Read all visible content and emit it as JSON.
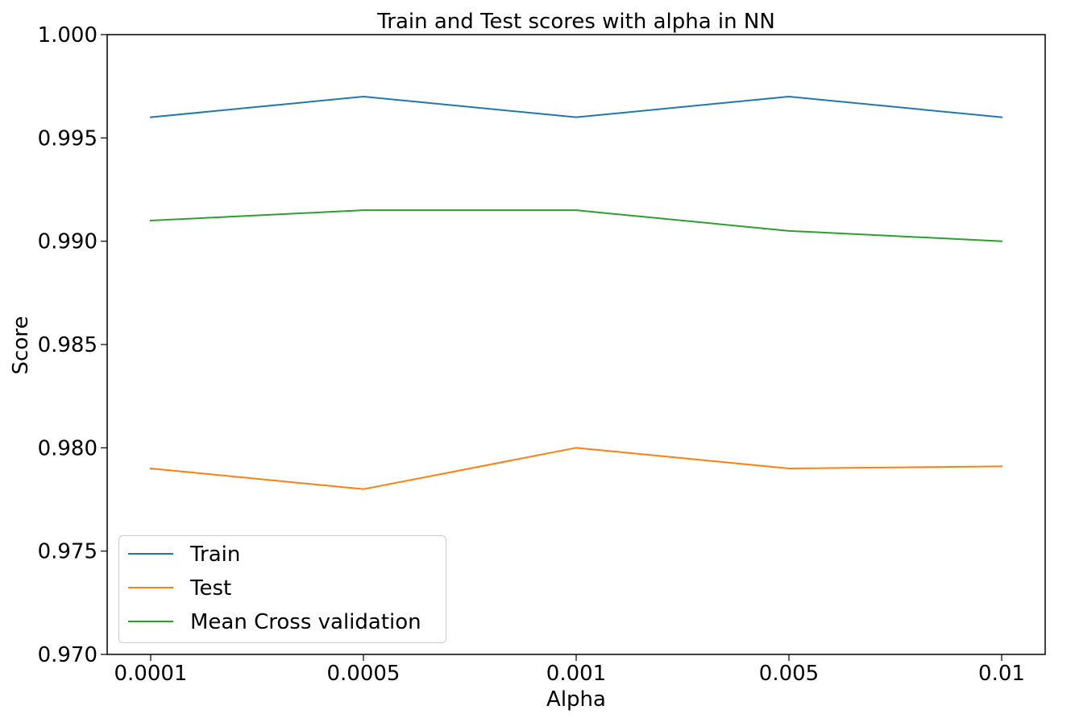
{
  "chart_data": {
    "type": "line",
    "title": "Train and Test scores with alpha in NN",
    "xlabel": "Alpha",
    "ylabel": "Score",
    "categories": [
      "0.0001",
      "0.0005",
      "0.001",
      "0.005",
      "0.01"
    ],
    "ylim": [
      0.97,
      1.0
    ],
    "yticks": [
      0.97,
      0.975,
      0.98,
      0.985,
      0.99,
      0.995,
      1.0
    ],
    "ytick_labels": [
      "0.970",
      "0.975",
      "0.980",
      "0.985",
      "0.990",
      "0.995",
      "1.000"
    ],
    "grid": false,
    "legend_position": "lower-left",
    "series": [
      {
        "name": "Train",
        "color": "#1f77b4",
        "values": [
          0.996,
          0.997,
          0.996,
          0.997,
          0.996
        ]
      },
      {
        "name": "Test",
        "color": "#ff7f0e",
        "values": [
          0.979,
          0.978,
          0.98,
          0.979,
          0.9791
        ]
      },
      {
        "name": "Mean Cross validation",
        "color": "#2ca02c",
        "values": [
          0.991,
          0.9915,
          0.9915,
          0.9905,
          0.99
        ]
      }
    ]
  }
}
